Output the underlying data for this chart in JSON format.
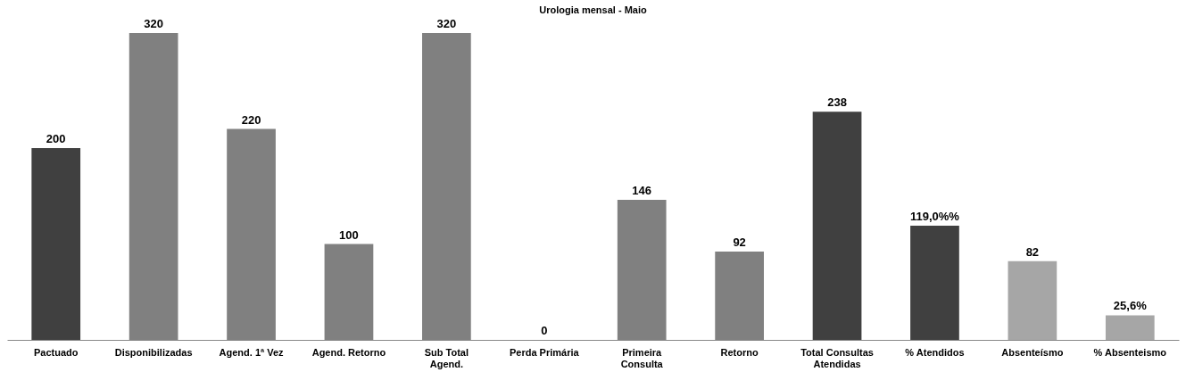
{
  "chart_data": {
    "type": "bar",
    "title": "Urologia mensal  - Maio",
    "categories": [
      "Pactuado",
      "Disponibilizadas",
      "Agend. 1ª Vez",
      "Agend. Retorno",
      "Sub Total Agend.",
      "Perda Primária",
      "Primeira Consulta",
      "Retorno",
      "Total Consultas Atendidas",
      "% Atendidos",
      "Absenteísmo",
      "% Absenteismo"
    ],
    "values": [
      200,
      320,
      220,
      100,
      320,
      0,
      146,
      92,
      238,
      119.0,
      82,
      25.6
    ],
    "value_labels": [
      "200",
      "320",
      "220",
      "100",
      "320",
      "0",
      "146",
      "92",
      "238",
      "119,0%%",
      "82",
      "25,6%"
    ],
    "colors": [
      "#404040",
      "#808080",
      "#808080",
      "#808080",
      "#808080",
      "#808080",
      "#808080",
      "#808080",
      "#404040",
      "#404040",
      "#a6a6a6",
      "#a6a6a6"
    ]
  }
}
